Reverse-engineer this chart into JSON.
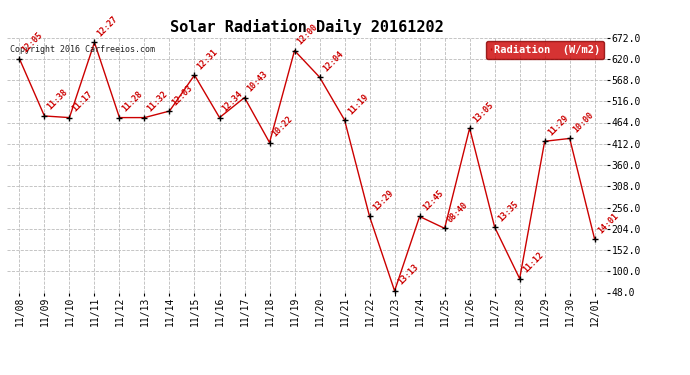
{
  "title": "Solar Radiation Daily 20161202",
  "ylabel_legend": "Radiation  (W/m2)",
  "copyright": "Copyright 2016 Carfreeios.com",
  "background_color": "#ffffff",
  "line_color": "#cc0000",
  "marker_color": "#000000",
  "grid_color": "#bbbbbb",
  "legend_bg": "#cc0000",
  "legend_text_color": "#ffffff",
  "dates": [
    "11/08",
    "11/09",
    "11/10",
    "11/11",
    "11/12",
    "11/13",
    "11/14",
    "11/15",
    "11/16",
    "11/17",
    "11/18",
    "11/19",
    "11/20",
    "11/21",
    "11/22",
    "11/23",
    "11/24",
    "11/25",
    "11/26",
    "11/27",
    "11/28",
    "11/29",
    "11/30",
    "12/01"
  ],
  "values": [
    620,
    480,
    476,
    660,
    476,
    476,
    492,
    580,
    476,
    525,
    415,
    640,
    575,
    470,
    234,
    52,
    234,
    205,
    450,
    208,
    82,
    418,
    425,
    178
  ],
  "labels": [
    "12:05",
    "11:38",
    "11:17",
    "12:27",
    "11:28",
    "11:32",
    "12:03",
    "12:31",
    "12:34",
    "10:43",
    "10:22",
    "12:00",
    "12:04",
    "11:19",
    "13:29",
    "13:13",
    "12:45",
    "08:40",
    "13:05",
    "13:35",
    "11:12",
    "11:29",
    "10:00",
    "14:01"
  ],
  "ylim": [
    48.0,
    672.0
  ],
  "yticks": [
    48.0,
    100.0,
    152.0,
    204.0,
    256.0,
    308.0,
    360.0,
    412.0,
    464.0,
    516.0,
    568.0,
    620.0,
    672.0
  ],
  "title_fontsize": 11,
  "label_fontsize": 6.0,
  "tick_fontsize": 7.0,
  "copyright_fontsize": 6.0
}
